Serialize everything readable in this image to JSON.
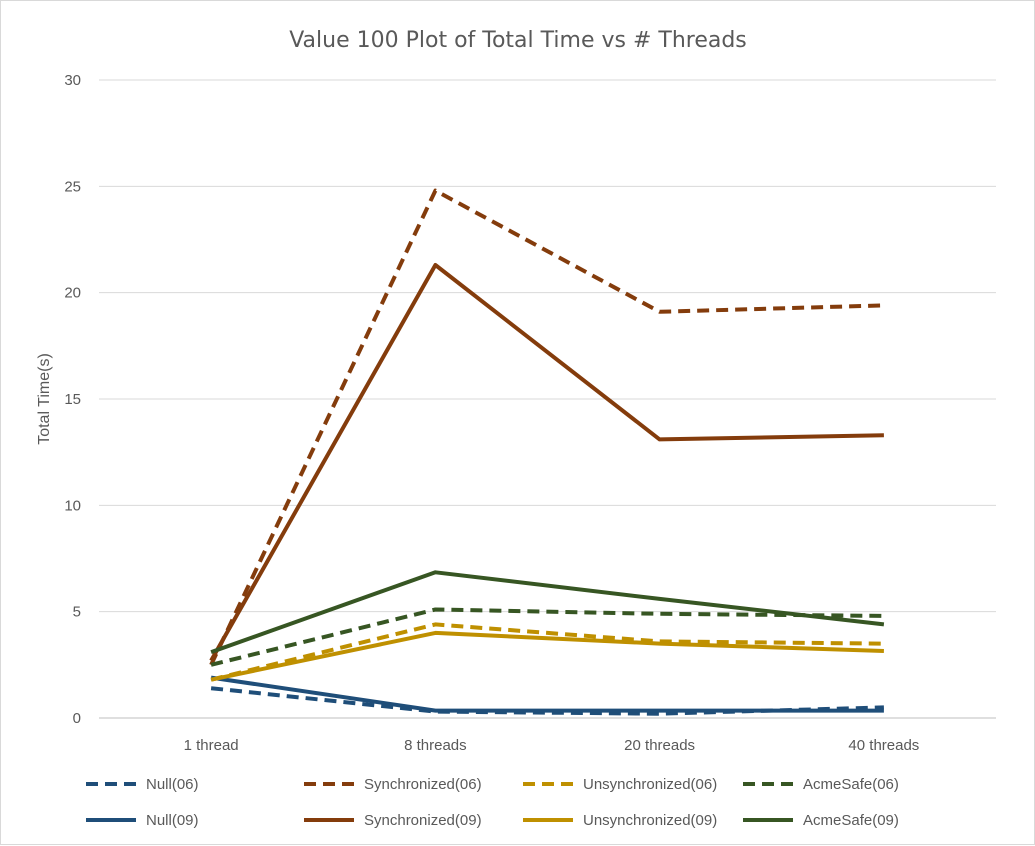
{
  "chart_data": {
    "type": "line",
    "title": "Value 100 Plot of Total Time vs # Threads",
    "xlabel": "",
    "ylabel": "Total Time(s)",
    "categories": [
      "1 thread",
      "8 threads",
      "20 threads",
      "40 threads"
    ],
    "ylim": [
      0,
      30
    ],
    "yticks": [
      0,
      5,
      10,
      15,
      20,
      25,
      30
    ],
    "grid": true,
    "legend_position": "bottom",
    "series": [
      {
        "name": "Null(06)",
        "color": "#1f4e79",
        "style": "dashed",
        "values": [
          1.4,
          0.3,
          0.2,
          0.5
        ]
      },
      {
        "name": "Synchronized(06)",
        "color": "#843c0c",
        "style": "dashed",
        "values": [
          2.5,
          24.8,
          19.1,
          19.4
        ]
      },
      {
        "name": "Unsynchronized(06)",
        "color": "#bf9000",
        "style": "dashed",
        "values": [
          1.8,
          4.4,
          3.6,
          3.5
        ]
      },
      {
        "name": "AcmeSafe(06)",
        "color": "#375623",
        "style": "dashed",
        "values": [
          2.5,
          5.1,
          4.9,
          4.8
        ]
      },
      {
        "name": "Null(09)",
        "color": "#1f4e79",
        "style": "solid",
        "values": [
          1.9,
          0.35,
          0.35,
          0.35
        ]
      },
      {
        "name": "Synchronized(09)",
        "color": "#843c0c",
        "style": "solid",
        "values": [
          2.7,
          21.3,
          13.1,
          13.3
        ]
      },
      {
        "name": "Unsynchronized(09)",
        "color": "#bf9000",
        "style": "solid",
        "values": [
          1.8,
          4.0,
          3.5,
          3.15
        ]
      },
      {
        "name": "AcmeSafe(09)",
        "color": "#375623",
        "style": "solid",
        "values": [
          3.1,
          6.85,
          5.6,
          4.4
        ]
      }
    ]
  }
}
